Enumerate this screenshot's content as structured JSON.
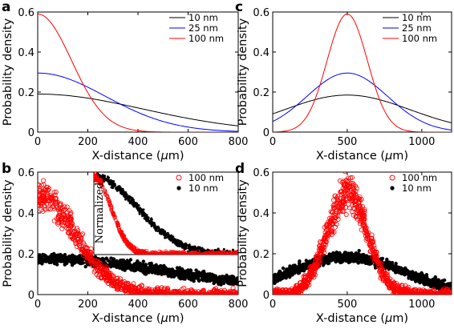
{
  "figure": {
    "panels": [
      "a",
      "b",
      "c",
      "d"
    ],
    "ylabel": "Probability density",
    "xlabel_prefix": "X-distance (",
    "xlabel_mu": "μ",
    "xlabel_suffix": "m)",
    "inset_label": "Normalized"
  },
  "chart_data": [
    {
      "panel": "a",
      "type": "line",
      "xlim": [
        0,
        800
      ],
      "ylim": [
        0,
        0.6
      ],
      "xticks": [
        "0",
        "200",
        "400",
        "600",
        "800"
      ],
      "yticks": [
        "0",
        "0.2",
        "0.4",
        "0.6"
      ],
      "legend_position": "top-right",
      "series": [
        {
          "name": "10 nm",
          "color": "#000000",
          "peak": 0.19,
          "sigma": 420,
          "mu": 0
        },
        {
          "name": "25 nm",
          "color": "#0000ff",
          "peak": 0.295,
          "sigma": 270,
          "mu": 0
        },
        {
          "name": "100 nm",
          "color": "#ff0000",
          "peak": 0.59,
          "sigma": 135,
          "mu": 0
        }
      ]
    },
    {
      "panel": "b",
      "type": "scatter",
      "xlim": [
        0,
        800
      ],
      "ylim": [
        0,
        0.6
      ],
      "xticks": [
        "0",
        "200",
        "400",
        "600",
        "800"
      ],
      "yticks": [
        "0",
        "0.2",
        "0.4",
        "0.6"
      ],
      "legend_position": "top-right",
      "series": [
        {
          "name": "100 nm",
          "color": "#ff0000",
          "marker": "open-circle",
          "peak": 0.49,
          "sigma": 150,
          "mu": 0
        },
        {
          "name": "10 nm",
          "color": "#000000",
          "marker": "dot",
          "peak": 0.175,
          "sigma": 560,
          "mu": 0
        }
      ],
      "inset": {
        "label": "Normalized",
        "xlim": [
          0,
          800
        ],
        "ylim": [
          0,
          1
        ]
      }
    },
    {
      "panel": "c",
      "type": "line",
      "xlim": [
        0,
        1200
      ],
      "ylim": [
        0,
        0.6
      ],
      "xticks": [
        "0",
        "500",
        "1000"
      ],
      "yticks": [
        "0",
        "0.2",
        "0.4",
        "0.6"
      ],
      "legend_position": "top-right",
      "series": [
        {
          "name": "10 nm",
          "color": "#000000",
          "peak": 0.185,
          "sigma": 420,
          "mu": 500
        },
        {
          "name": "25 nm",
          "color": "#0000ff",
          "peak": 0.295,
          "sigma": 270,
          "mu": 500
        },
        {
          "name": "100 nm",
          "color": "#ff0000",
          "peak": 0.59,
          "sigma": 135,
          "mu": 500
        }
      ]
    },
    {
      "panel": "d",
      "type": "scatter",
      "xlim": [
        0,
        1200
      ],
      "ylim": [
        0,
        0.6
      ],
      "xticks": [
        "0",
        "500",
        "1000"
      ],
      "yticks": [
        "0",
        "0.2",
        "0.4",
        "0.6"
      ],
      "legend_position": "top-right",
      "series": [
        {
          "name": "100 nm",
          "color": "#ff0000",
          "marker": "open-circle",
          "peak": 0.5,
          "sigma": 135,
          "mu": 500
        },
        {
          "name": "10 nm",
          "color": "#000000",
          "marker": "dot",
          "peak": 0.185,
          "sigma": 380,
          "mu": 500
        }
      ]
    }
  ]
}
